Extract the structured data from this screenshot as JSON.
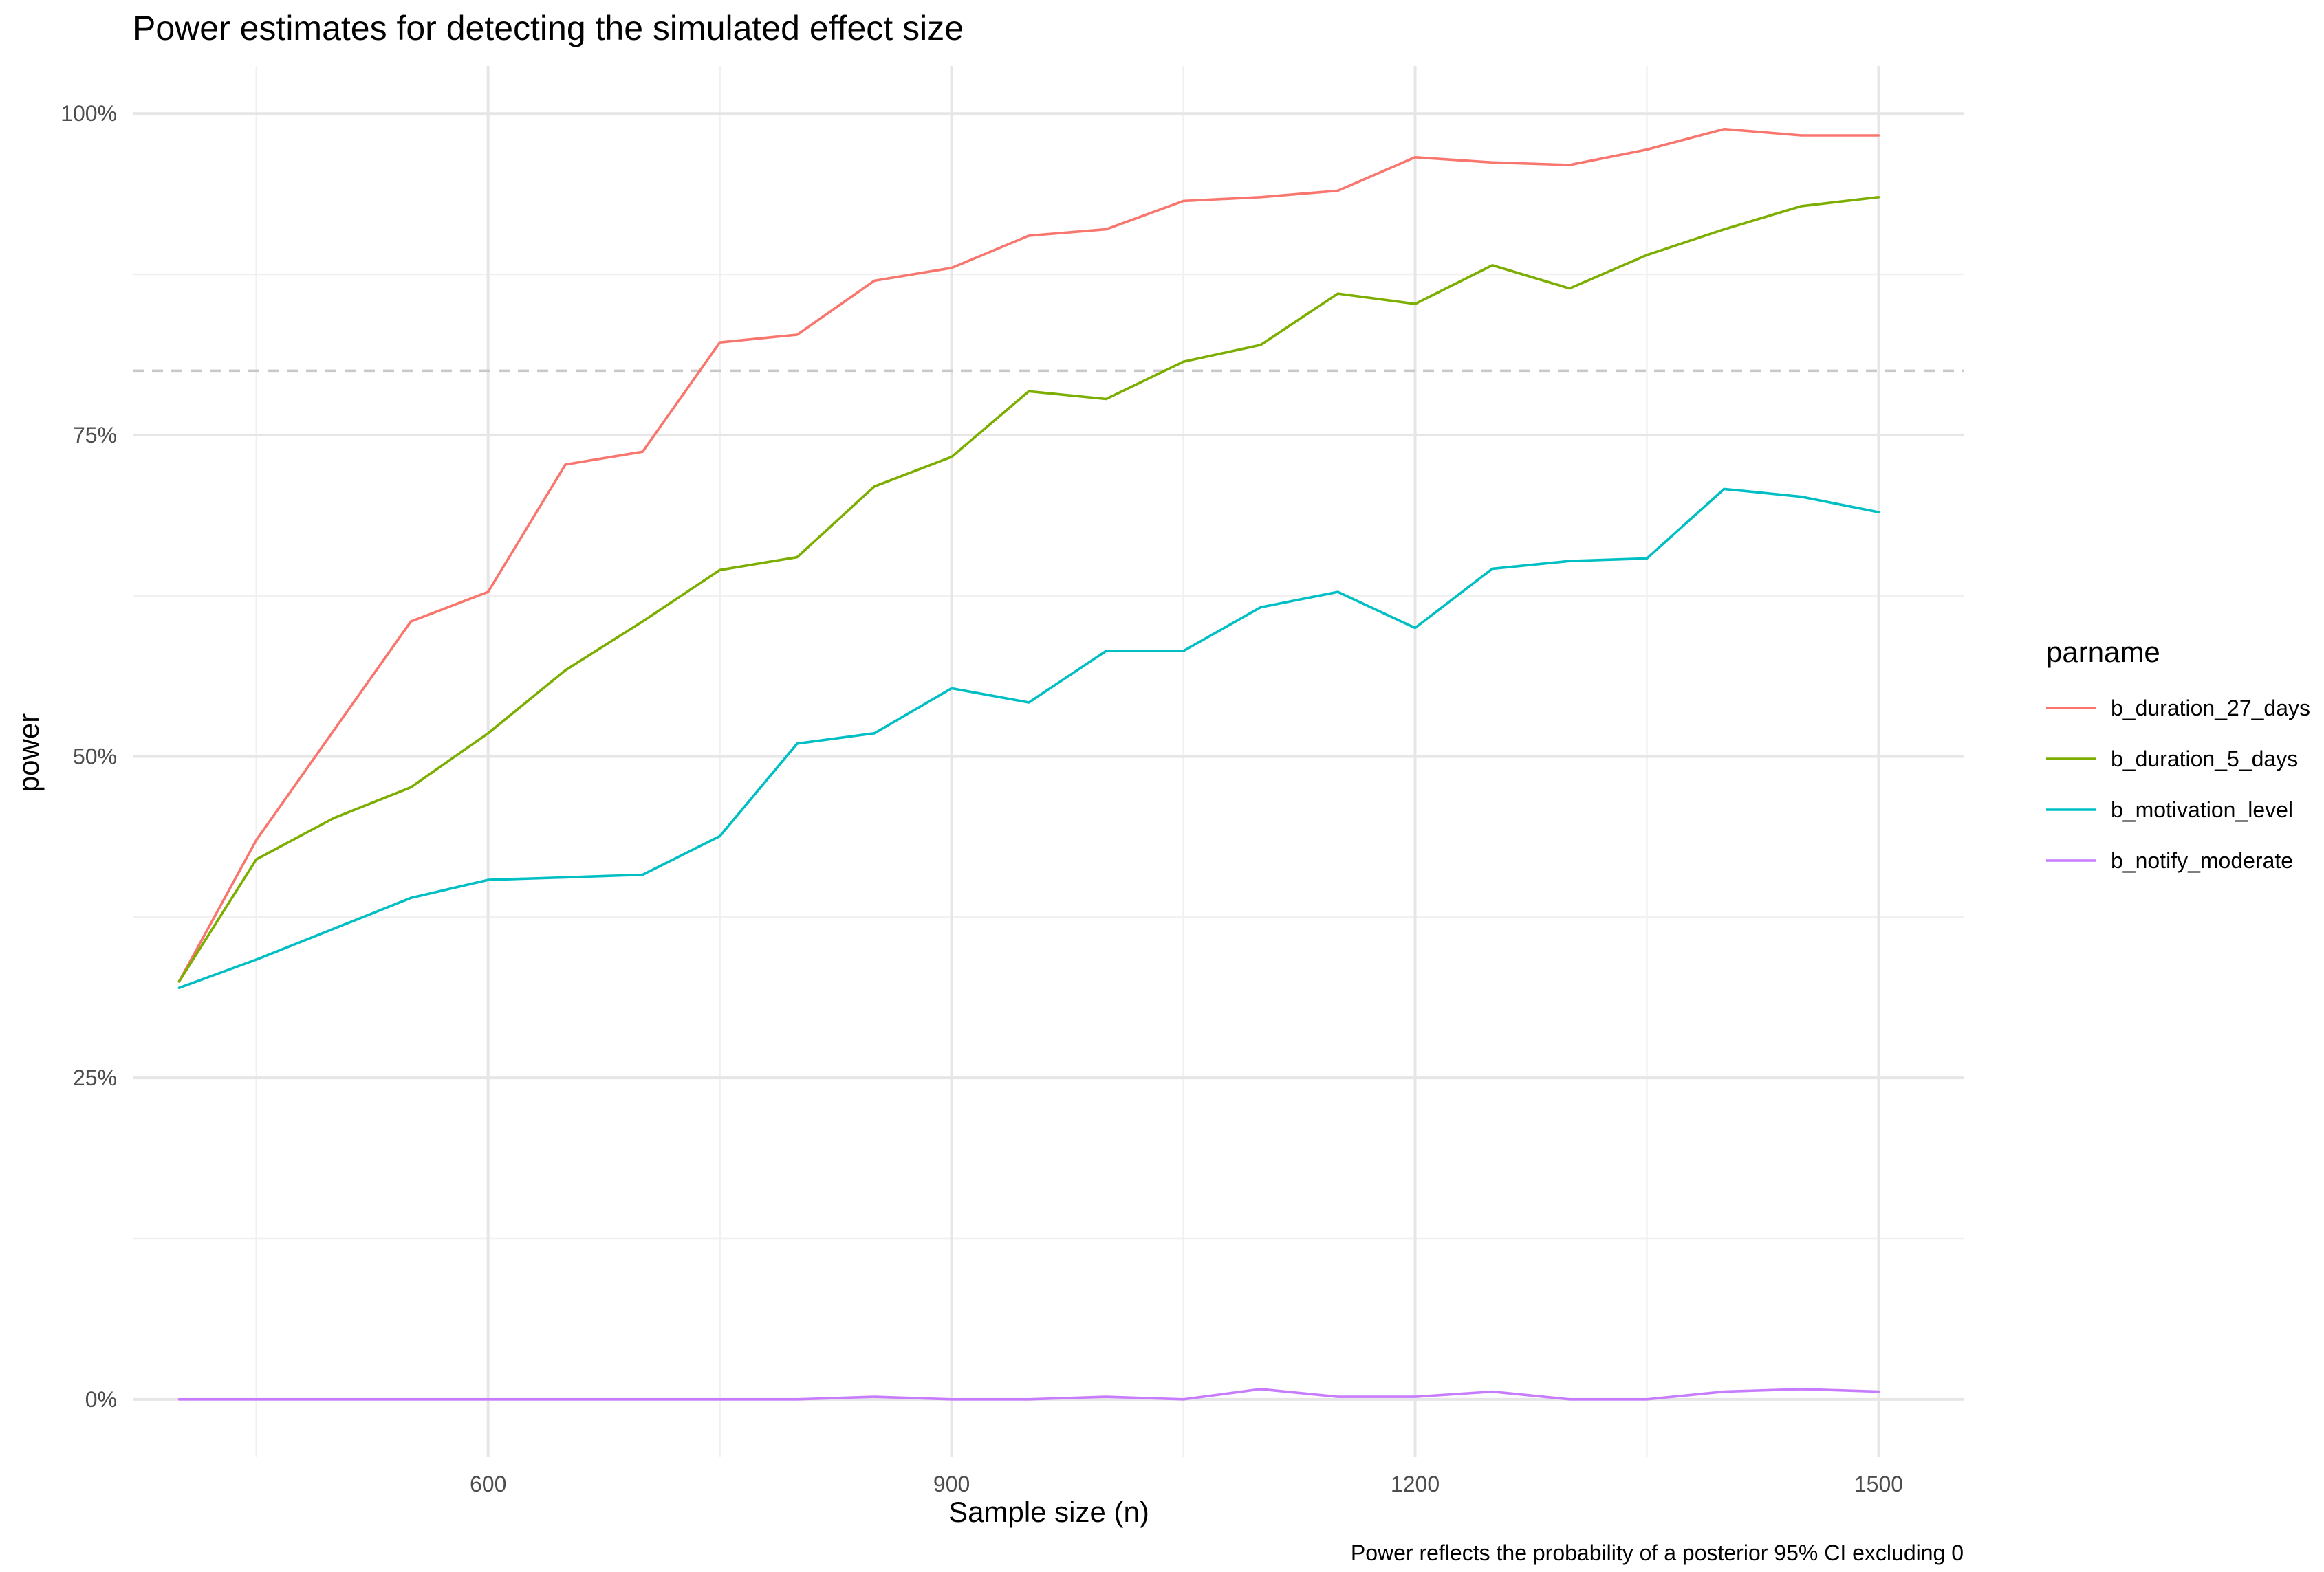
{
  "chart_data": {
    "type": "line",
    "title": "Power estimates for detecting the simulated effect size",
    "xlabel": "Sample size (n)",
    "ylabel": "power",
    "caption": "Power reflects the probability of a posterior 95% CI excluding 0",
    "xlim": [
      370,
      1555
    ],
    "ylim": [
      -0.045,
      1.037
    ],
    "x_major_ticks": [
      600,
      900,
      1200,
      1500
    ],
    "x_major_tick_labels": [
      "600",
      "900",
      "1200",
      "1500"
    ],
    "x_minor_ticks": [
      450,
      750,
      1050,
      1350
    ],
    "y_major_ticks": [
      0,
      0.25,
      0.5,
      0.75,
      1.0
    ],
    "y_major_tick_labels": [
      "0%",
      "25%",
      "50%",
      "75%",
      "100%"
    ],
    "y_minor_ticks": [
      0.125,
      0.375,
      0.625,
      0.875
    ],
    "reference_line": {
      "y": 0.8,
      "style": "dashed",
      "color": "#c8c8c8"
    },
    "grid": true,
    "legend": {
      "title": "parname",
      "position": "right"
    },
    "x": [
      400,
      450,
      500,
      550,
      600,
      650,
      700,
      750,
      800,
      850,
      900,
      950,
      1000,
      1050,
      1100,
      1150,
      1200,
      1250,
      1300,
      1350,
      1400,
      1450,
      1500
    ],
    "series": [
      {
        "name": "b_duration_27_days",
        "color": "#F8766D",
        "values": [
          0.325,
          0.435,
          0.52,
          0.605,
          0.628,
          0.727,
          0.737,
          0.822,
          0.828,
          0.87,
          0.88,
          0.905,
          0.91,
          0.932,
          0.935,
          0.94,
          0.966,
          0.962,
          0.96,
          0.972,
          0.988,
          0.983,
          0.983
        ]
      },
      {
        "name": "b_duration_5_days",
        "color": "#7CAE00",
        "values": [
          0.325,
          0.42,
          0.452,
          0.476,
          0.518,
          0.567,
          0.605,
          0.645,
          0.655,
          0.71,
          0.733,
          0.784,
          0.778,
          0.807,
          0.82,
          0.86,
          0.852,
          0.882,
          0.864,
          0.89,
          0.91,
          0.928,
          0.935
        ]
      },
      {
        "name": "b_motivation_level",
        "color": "#00BFC4",
        "values": [
          0.32,
          0.342,
          0.366,
          0.39,
          0.404,
          0.406,
          0.408,
          0.438,
          0.51,
          0.518,
          0.553,
          0.542,
          0.582,
          0.582,
          0.616,
          0.628,
          0.6,
          0.646,
          0.652,
          0.654,
          0.708,
          0.702,
          0.69
        ]
      },
      {
        "name": "b_notify_moderate",
        "color": "#C77CFF",
        "values": [
          0,
          0,
          0,
          0,
          0,
          0,
          0,
          0,
          0,
          0.002,
          0,
          0,
          0.002,
          0,
          0.008,
          0.002,
          0.002,
          0.006,
          0,
          0,
          0.006,
          0.008,
          0.006
        ]
      }
    ]
  }
}
